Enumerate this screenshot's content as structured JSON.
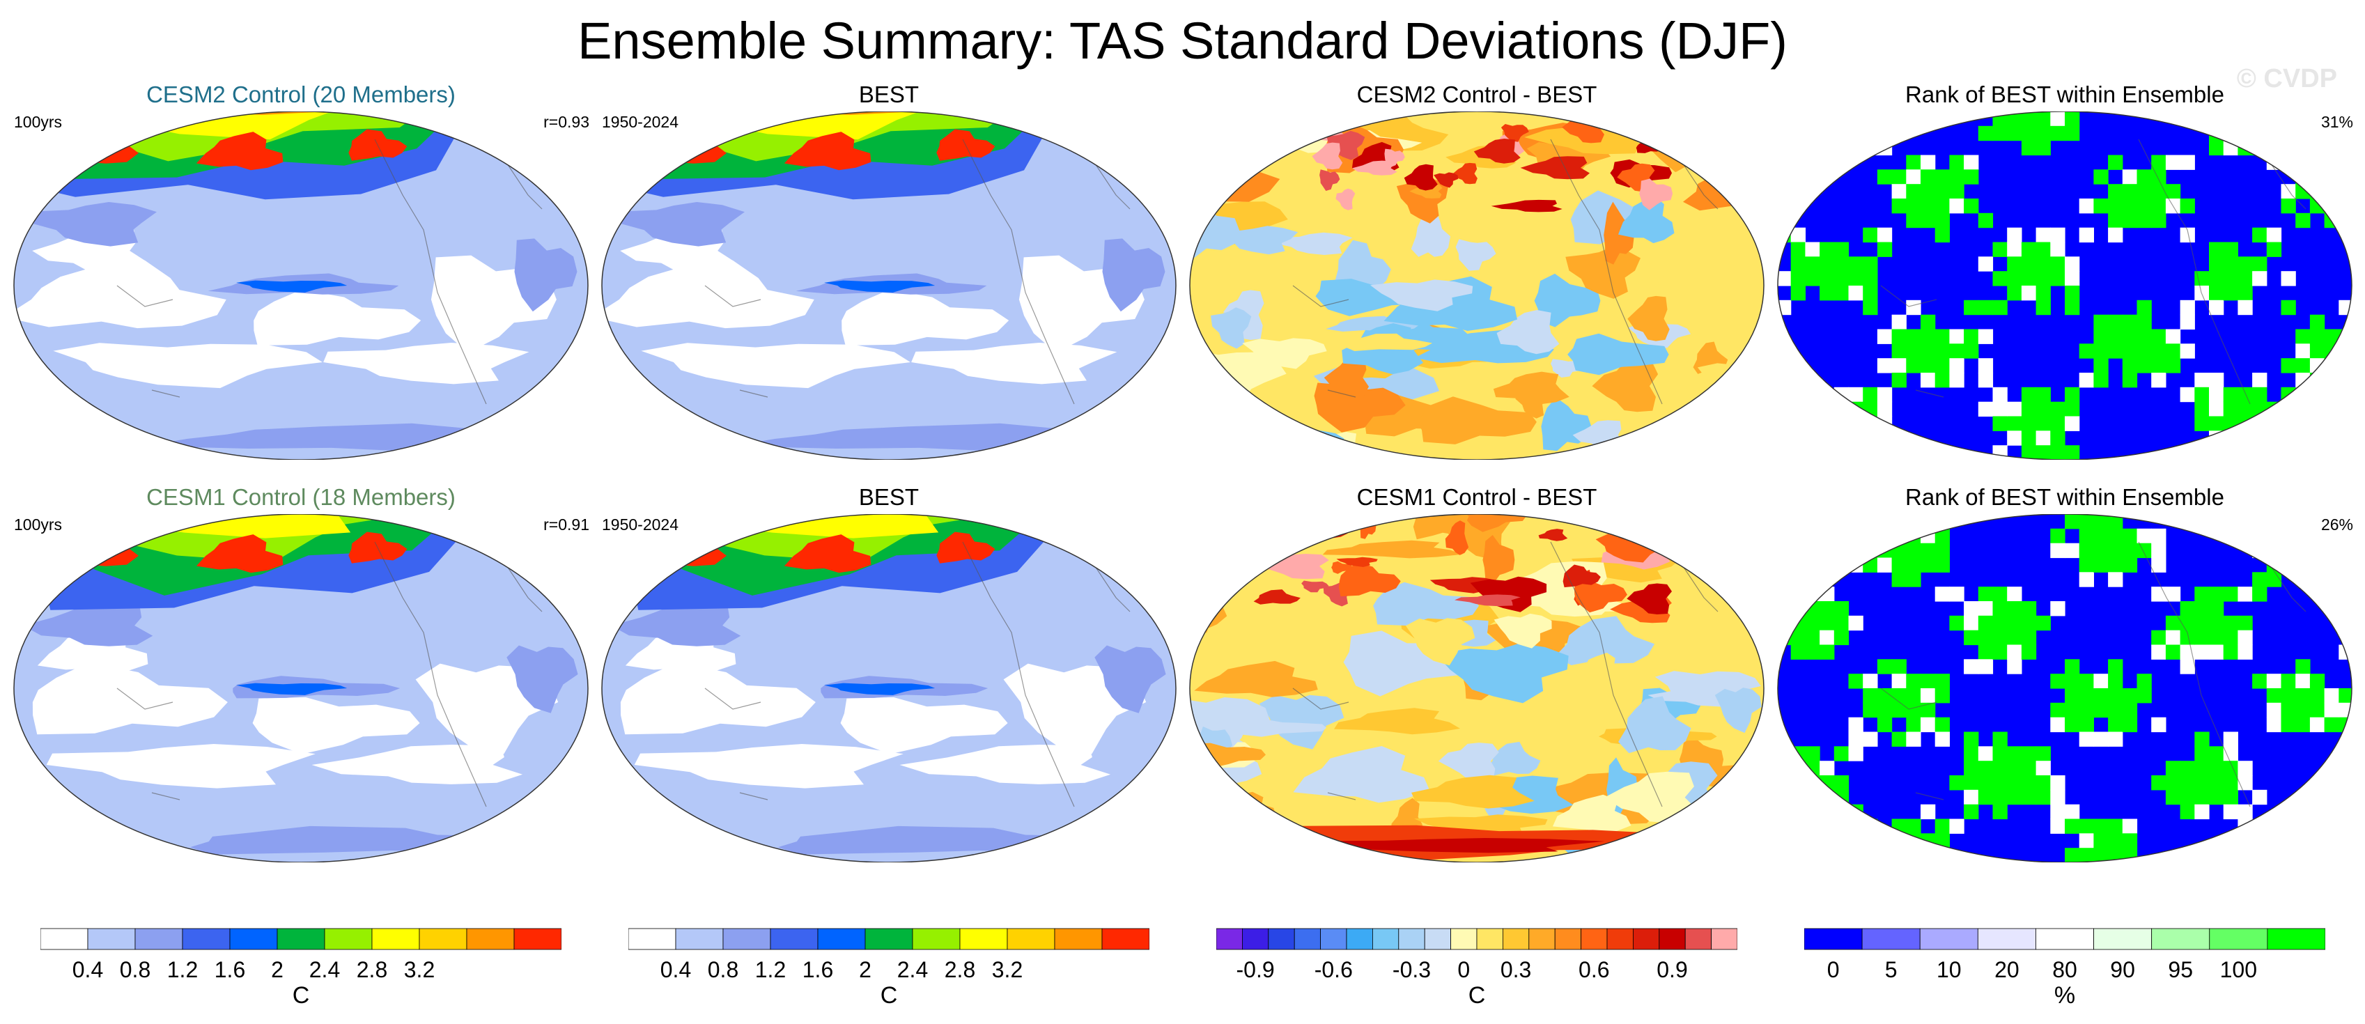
{
  "title": "Ensemble Summary: TAS Standard Deviations (DJF)",
  "watermark": "© CVDP",
  "panels": [
    {
      "title": "CESM2 Control (20 Members)",
      "title_color": "#1f6f8b",
      "left_label": "100yrs",
      "right_label": "r=0.93",
      "type": "std"
    },
    {
      "title": "BEST",
      "title_color": "#000000",
      "left_label": "1950-2024",
      "right_label": "",
      "type": "std"
    },
    {
      "title": "CESM2 Control - BEST",
      "title_color": "#000000",
      "left_label": "",
      "right_label": "",
      "type": "diff"
    },
    {
      "title": "Rank of BEST within Ensemble",
      "title_color": "#000000",
      "left_label": "",
      "right_label": "31%",
      "type": "rank"
    },
    {
      "title": "CESM1 Control (18 Members)",
      "title_color": "#5e8a5e",
      "left_label": "100yrs",
      "right_label": "r=0.91",
      "type": "std"
    },
    {
      "title": "BEST",
      "title_color": "#000000",
      "left_label": "1950-2024",
      "right_label": "",
      "type": "std"
    },
    {
      "title": "CESM1 Control - BEST",
      "title_color": "#000000",
      "left_label": "",
      "right_label": "",
      "type": "diff"
    },
    {
      "title": "Rank of BEST within Ensemble",
      "title_color": "#000000",
      "left_label": "",
      "right_label": "26%",
      "type": "rank"
    }
  ],
  "colorbars": [
    {
      "units": "C",
      "colors": [
        "#ffffff",
        "#b4c8f8",
        "#8ca0f0",
        "#3c64f0",
        "#0064ff",
        "#00b43c",
        "#96f000",
        "#ffff00",
        "#ffd200",
        "#ff9600",
        "#ff2800"
      ],
      "ticks": [
        "0.4",
        "0.8",
        "1.2",
        "1.6",
        "2",
        "2.4",
        "2.8",
        "3.2"
      ]
    },
    {
      "units": "C",
      "colors": [
        "#ffffff",
        "#b4c8f8",
        "#8ca0f0",
        "#3c64f0",
        "#0064ff",
        "#00b43c",
        "#96f000",
        "#ffff00",
        "#ffd200",
        "#ff9600",
        "#ff2800"
      ],
      "ticks": [
        "0.4",
        "0.8",
        "1.2",
        "1.6",
        "2",
        "2.4",
        "2.8",
        "3.2"
      ]
    },
    {
      "units": "C",
      "colors": [
        "#7a28e6",
        "#3c1ee6",
        "#2846e6",
        "#3c6ef0",
        "#5a8cf5",
        "#3caaf5",
        "#78c8f5",
        "#aad2f5",
        "#c8dcf5",
        "#fffab4",
        "#ffe664",
        "#ffc832",
        "#ffaa28",
        "#ff8c1e",
        "#ff6414",
        "#f03c0a",
        "#dc1e0a",
        "#c80000",
        "#e65050",
        "#ffaaaa"
      ],
      "ticks": [
        "-0.9",
        "-0.6",
        "-0.3",
        "0",
        "0.3",
        "0.6",
        "0.9"
      ]
    },
    {
      "units": "%",
      "colors": [
        "#0000ff",
        "#6464ff",
        "#aaaaff",
        "#e6e6ff",
        "#ffffff",
        "#e6ffe6",
        "#aaffaa",
        "#64ff64",
        "#00ff00"
      ],
      "ticks": [
        "0",
        "5",
        "10",
        "20",
        "80",
        "90",
        "95",
        "100"
      ]
    }
  ],
  "chart_data": [
    {
      "type": "heatmap",
      "panel": "CESM2 Control (20 Members)",
      "variable": "TAS standard deviation",
      "units": "C",
      "levels": [
        0.4,
        0.8,
        1.2,
        1.6,
        2,
        2.4,
        2.8,
        3.2
      ]
    },
    {
      "type": "heatmap",
      "panel": "BEST",
      "variable": "TAS standard deviation",
      "units": "C",
      "levels": [
        0.4,
        0.8,
        1.2,
        1.6,
        2,
        2.4,
        2.8,
        3.2
      ]
    },
    {
      "type": "heatmap",
      "panel": "CESM2 Control - BEST",
      "variable": "difference",
      "units": "C",
      "levels": [
        -0.9,
        -0.6,
        -0.3,
        0,
        0.3,
        0.6,
        0.9
      ]
    },
    {
      "type": "heatmap",
      "panel": "Rank of BEST within Ensemble",
      "units": "%",
      "levels": [
        0,
        5,
        10,
        20,
        80,
        90,
        95,
        100
      ],
      "summary": "31%"
    },
    {
      "type": "heatmap",
      "panel": "CESM1 Control (18 Members)",
      "variable": "TAS standard deviation",
      "units": "C",
      "levels": [
        0.4,
        0.8,
        1.2,
        1.6,
        2,
        2.4,
        2.8,
        3.2
      ]
    },
    {
      "type": "heatmap",
      "panel": "BEST",
      "variable": "TAS standard deviation",
      "units": "C",
      "levels": [
        0.4,
        0.8,
        1.2,
        1.6,
        2,
        2.4,
        2.8,
        3.2
      ]
    },
    {
      "type": "heatmap",
      "panel": "CESM1 Control - BEST",
      "variable": "difference",
      "units": "C",
      "levels": [
        -0.9,
        -0.6,
        -0.3,
        0,
        0.3,
        0.6,
        0.9
      ]
    },
    {
      "type": "heatmap",
      "panel": "Rank of BEST within Ensemble",
      "units": "%",
      "levels": [
        0,
        5,
        10,
        20,
        80,
        90,
        95,
        100
      ],
      "summary": "26%"
    }
  ]
}
